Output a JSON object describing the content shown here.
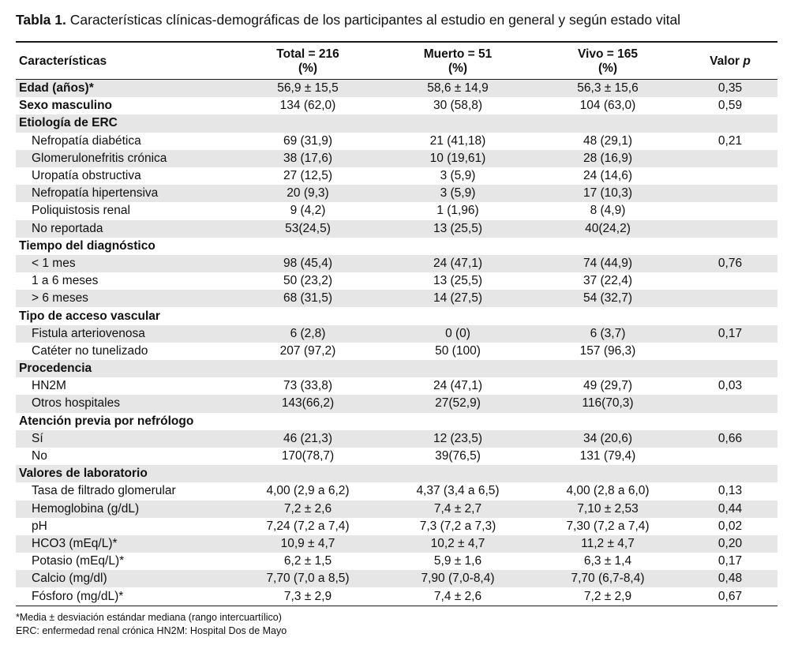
{
  "title": {
    "label": "Tabla 1.",
    "text": "Características clínicas-demográficas de los participantes al estudio en general y según estado vital"
  },
  "header": {
    "col0": "Características",
    "col1_line1": "Total = 216",
    "col1_line2": "(%)",
    "col2_line1": "Muerto = 51",
    "col2_line2": "(%)",
    "col3_line1": "Vivo = 165",
    "col3_line2": "(%)",
    "col4_prefix": "Valor ",
    "col4_italic": "p"
  },
  "rows": [
    {
      "label": "Edad (años)*",
      "total": "56,9 ± 15,5",
      "muerto": "58,6 ± 14,9",
      "vivo": "56,3 ± 15,6",
      "p": "0,35",
      "bold": true,
      "indent": false
    },
    {
      "label": "Sexo masculino",
      "total": "134 (62,0)",
      "muerto": "30 (58,8)",
      "vivo": "104 (63,0)",
      "p": "0,59",
      "bold": true,
      "indent": false
    },
    {
      "label": "Etiología de ERC",
      "total": "",
      "muerto": "",
      "vivo": "",
      "p": "",
      "bold": true,
      "indent": false
    },
    {
      "label": "Nefropatía diabética",
      "total": "69 (31,9)",
      "muerto": "21 (41,18)",
      "vivo": "48 (29,1)",
      "p": "0,21",
      "bold": false,
      "indent": true
    },
    {
      "label": "Glomerulonefritis crónica",
      "total": "38 (17,6)",
      "muerto": "10 (19,61)",
      "vivo": "28 (16,9)",
      "p": "",
      "bold": false,
      "indent": true
    },
    {
      "label": "Uropatía obstructiva",
      "total": "27 (12,5)",
      "muerto": "3 (5,9)",
      "vivo": "24 (14,6)",
      "p": "",
      "bold": false,
      "indent": true
    },
    {
      "label": "Nefropatía hipertensiva",
      "total": "20 (9,3)",
      "muerto": "3 (5,9)",
      "vivo": "17 (10,3)",
      "p": "",
      "bold": false,
      "indent": true
    },
    {
      "label": "Poliquistosis renal",
      "total": "9 (4,2)",
      "muerto": "1 (1,96)",
      "vivo": "8 (4,9)",
      "p": "",
      "bold": false,
      "indent": true
    },
    {
      "label": "No reportada",
      "total": "53(24,5)",
      "muerto": "13 (25,5)",
      "vivo": "40(24,2)",
      "p": "",
      "bold": false,
      "indent": true
    },
    {
      "label": "Tiempo del diagnóstico",
      "total": "",
      "muerto": "",
      "vivo": "",
      "p": "",
      "bold": true,
      "indent": false
    },
    {
      "label": "< 1 mes",
      "total": "98 (45,4)",
      "muerto": "24 (47,1)",
      "vivo": "74 (44,9)",
      "p": "0,76",
      "bold": false,
      "indent": true
    },
    {
      "label": "1 a 6 meses",
      "total": "50 (23,2)",
      "muerto": "13 (25,5)",
      "vivo": "37 (22,4)",
      "p": "",
      "bold": false,
      "indent": true
    },
    {
      "label": "> 6 meses",
      "total": "68 (31,5)",
      "muerto": "14 (27,5)",
      "vivo": "54 (32,7)",
      "p": "",
      "bold": false,
      "indent": true
    },
    {
      "label": "Tipo de acceso vascular",
      "total": "",
      "muerto": "",
      "vivo": "",
      "p": "",
      "bold": true,
      "indent": false
    },
    {
      "label": "Fistula arteriovenosa",
      "total": "6 (2,8)",
      "muerto": "0 (0)",
      "vivo": "6 (3,7)",
      "p": "0,17",
      "bold": false,
      "indent": true
    },
    {
      "label": "Catéter no tunelizado",
      "total": "207 (97,2)",
      "muerto": "50 (100)",
      "vivo": "157 (96,3)",
      "p": "",
      "bold": false,
      "indent": true
    },
    {
      "label": "Procedencia",
      "total": "",
      "muerto": "",
      "vivo": "",
      "p": "",
      "bold": true,
      "indent": false
    },
    {
      "label": "HN2M",
      "total": "73 (33,8)",
      "muerto": "24 (47,1)",
      "vivo": "49 (29,7)",
      "p": "0,03",
      "bold": false,
      "indent": true
    },
    {
      "label": "Otros hospitales",
      "total": "143(66,2)",
      "muerto": "27(52,9)",
      "vivo": "116(70,3)",
      "p": "",
      "bold": false,
      "indent": true
    },
    {
      "label": "Atención previa por nefrólogo",
      "total": "",
      "muerto": "",
      "vivo": "",
      "p": "",
      "bold": true,
      "indent": false
    },
    {
      "label": "Sí",
      "total": "46 (21,3)",
      "muerto": "12 (23,5)",
      "vivo": "34 (20,6)",
      "p": "0,66",
      "bold": false,
      "indent": true
    },
    {
      "label": "No",
      "total": "170(78,7)",
      "muerto": "39(76,5)",
      "vivo": "131 (79,4)",
      "p": "",
      "bold": false,
      "indent": true
    },
    {
      "label": "Valores de laboratorio",
      "total": "",
      "muerto": "",
      "vivo": "",
      "p": "",
      "bold": true,
      "indent": false
    },
    {
      "label": "Tasa de filtrado glomerular",
      "total": "4,00 (2,9 a 6,2)",
      "muerto": "4,37 (3,4 a 6,5)",
      "vivo": "4,00 (2,8 a 6,0)",
      "p": "0,13",
      "bold": false,
      "indent": true
    },
    {
      "label": "Hemoglobina (g/dL)",
      "total": "7,2 ± 2,6",
      "muerto": "7,4 ± 2,7",
      "vivo": "7,10 ± 2,53",
      "p": "0,44",
      "bold": false,
      "indent": true
    },
    {
      "label": "pH",
      "total": "7,24 (7,2 a 7,4)",
      "muerto": "7,3 (7,2 a 7,3)",
      "vivo": "7,30 (7,2 a 7,4)",
      "p": "0,02",
      "bold": false,
      "indent": true
    },
    {
      "label": "HCO3 (mEq/L)*",
      "total": "10,9 ± 4,7",
      "muerto": "10,2 ± 4,7",
      "vivo": "11,2 ± 4,7",
      "p": "0,20",
      "bold": false,
      "indent": true
    },
    {
      "label": "Potasio (mEq/L)*",
      "total": "6,2 ± 1,5",
      "muerto": "5,9 ± 1,6",
      "vivo": "6,3 ± 1,4",
      "p": "0,17",
      "bold": false,
      "indent": true
    },
    {
      "label": "Calcio (mg/dl)",
      "total": "7,70 (7,0 a 8,5)",
      "muerto": "7,90 (7,0-8,4)",
      "vivo": "7,70 (6,7-8,4)",
      "p": "0,48",
      "bold": false,
      "indent": true
    },
    {
      "label": "Fósforo (mg/dL)*",
      "total": "7,3 ± 2,9",
      "muerto": "7,4 ±  2,6",
      "vivo": "7,2 ± 2,9",
      "p": "0,67",
      "bold": false,
      "indent": true
    }
  ],
  "footnotes": {
    "note1": "*Media ± desviación estándar mediana (rango intercuartílico)",
    "note2": "ERC: enfermedad renal crónica HN2M: Hospital Dos de Mayo"
  }
}
